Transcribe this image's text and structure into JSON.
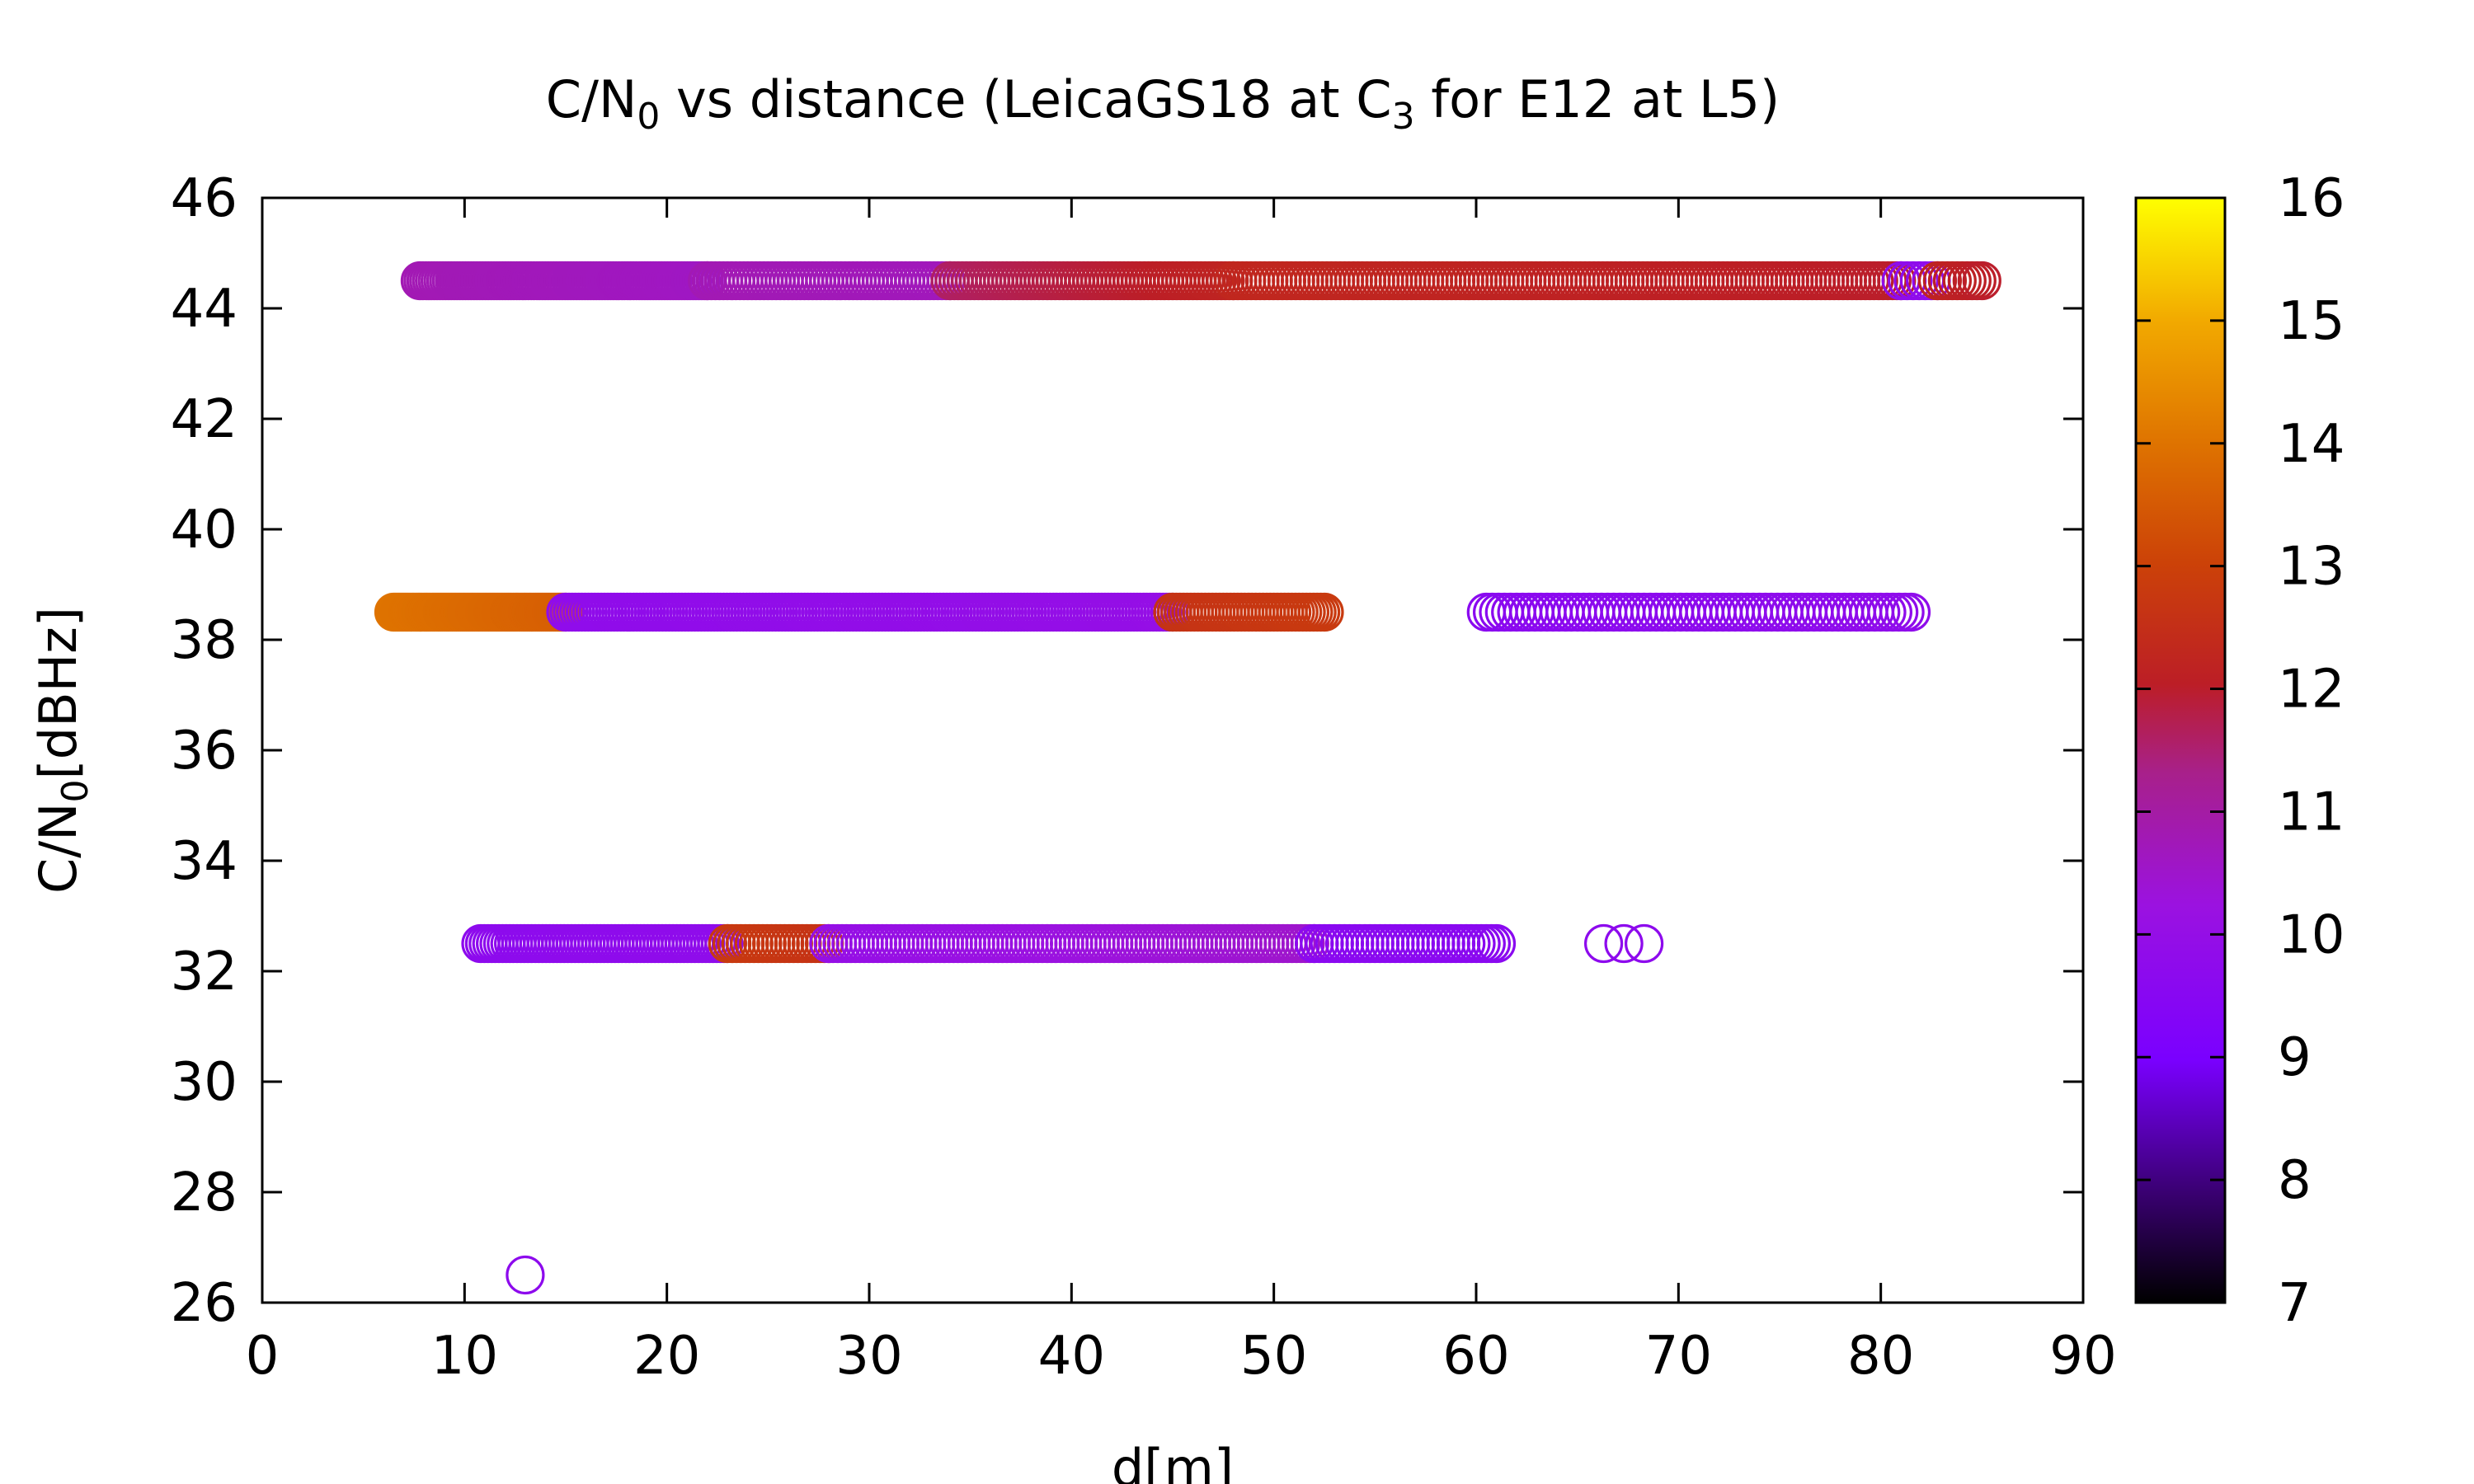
{
  "chart_data": {
    "type": "scatter",
    "title": {
      "main": "C/N",
      "sub0": "0",
      "mid": " vs distance (LeicaGS18 at C",
      "sub1": "3",
      "tail": " for E12 at L5)"
    },
    "xlabel": "d[m]",
    "ylabel": {
      "main": "C/N",
      "sub": "0",
      "tail": "[dBHz]"
    },
    "xlim": [
      0,
      90
    ],
    "ylim": [
      26,
      46
    ],
    "x_ticks": [
      "0",
      "10",
      "20",
      "30",
      "40",
      "50",
      "60",
      "70",
      "80",
      "90"
    ],
    "y_ticks": [
      "26",
      "28",
      "30",
      "32",
      "34",
      "36",
      "38",
      "40",
      "42",
      "44",
      "46"
    ],
    "colorbar": {
      "range": [
        7,
        16
      ],
      "ticks": [
        "7",
        "8",
        "9",
        "10",
        "11",
        "12",
        "13",
        "14",
        "15",
        "16"
      ],
      "palette": "black-purple-red-orange-yellow"
    },
    "marker": "open-circle",
    "grid": false,
    "bands": [
      {
        "y": 44.5,
        "segments": [
          {
            "x0": 7.8,
            "x1": 22,
            "step": 0.14,
            "c0": 10.8,
            "c1": 10.6
          },
          {
            "x0": 22,
            "x1": 34,
            "step": 0.2,
            "c0": 10.8,
            "c1": 10.7
          },
          {
            "x0": 34,
            "x1": 48,
            "step": 0.2,
            "c0": 11.6,
            "c1": 12.2
          },
          {
            "x0": 48,
            "x1": 81,
            "step": 0.22,
            "c0": 12.3,
            "c1": 12.0
          },
          {
            "x0": 81,
            "x1": 82.8,
            "step": 0.3,
            "c0": 9.8,
            "c1": 9.8
          },
          {
            "x0": 82.8,
            "x1": 85,
            "step": 0.25,
            "c0": 12.2,
            "c1": 12.0
          }
        ]
      },
      {
        "y": 38.5,
        "segments": [
          {
            "x0": 6.5,
            "x1": 15,
            "step": 0.1,
            "c0": 14.0,
            "c1": 13.6
          },
          {
            "x0": 15,
            "x1": 45,
            "step": 0.16,
            "c0": 9.8,
            "c1": 10.0
          },
          {
            "x0": 45,
            "x1": 52.5,
            "step": 0.18,
            "c0": 12.6,
            "c1": 12.8
          },
          {
            "x0": 60.5,
            "x1": 81.5,
            "step": 0.3,
            "c0": 9.6,
            "c1": 9.8
          }
        ]
      },
      {
        "y": 32.5,
        "segments": [
          {
            "x0": 10.8,
            "x1": 23,
            "step": 0.18,
            "c0": 9.7,
            "c1": 9.8
          },
          {
            "x0": 23,
            "x1": 28,
            "step": 0.22,
            "c0": 12.8,
            "c1": 12.6
          },
          {
            "x0": 28,
            "x1": 52,
            "step": 0.22,
            "c0": 10.0,
            "c1": 10.5
          },
          {
            "x0": 52,
            "x1": 61,
            "step": 0.25,
            "c0": 9.6,
            "c1": 9.6
          },
          {
            "x0": 66.3,
            "x1": 68.3,
            "step": 1.0,
            "c0": 9.7,
            "c1": 9.7
          }
        ]
      }
    ],
    "outliers": [
      {
        "x": 13,
        "y": 26.5,
        "c": 9.7
      }
    ]
  }
}
